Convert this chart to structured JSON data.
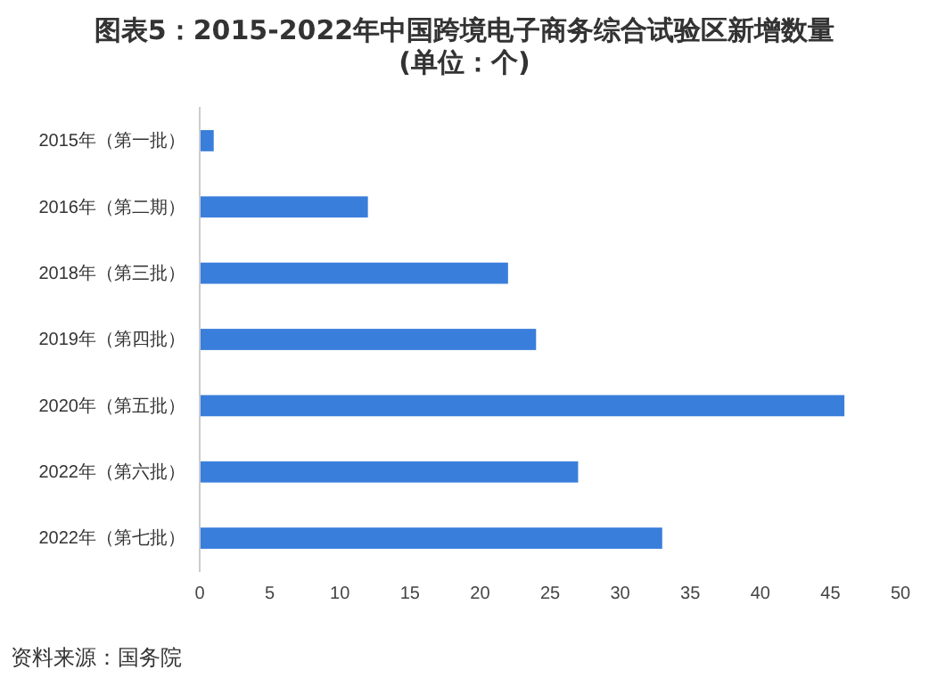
{
  "chart_data": {
    "type": "bar",
    "orientation": "horizontal",
    "title": "图表5：2015-2022年中国跨境电子商务综合试验区新增数量(单位：个)",
    "categories": [
      "2015年（第一批）",
      "2016年（第二期）",
      "2018年（第三批）",
      "2019年（第四批）",
      "2020年（第五批）",
      "2022年（第六批）",
      "2022年（第七批）"
    ],
    "values": [
      1,
      12,
      22,
      24,
      46,
      27,
      33
    ],
    "color": "#3a7edb",
    "xlim": [
      0,
      50
    ],
    "xticks": [
      0,
      5,
      10,
      15,
      20,
      25,
      30,
      35,
      40,
      45,
      50
    ],
    "grid": false,
    "annotations": [
      "资料来源：国务院"
    ]
  }
}
